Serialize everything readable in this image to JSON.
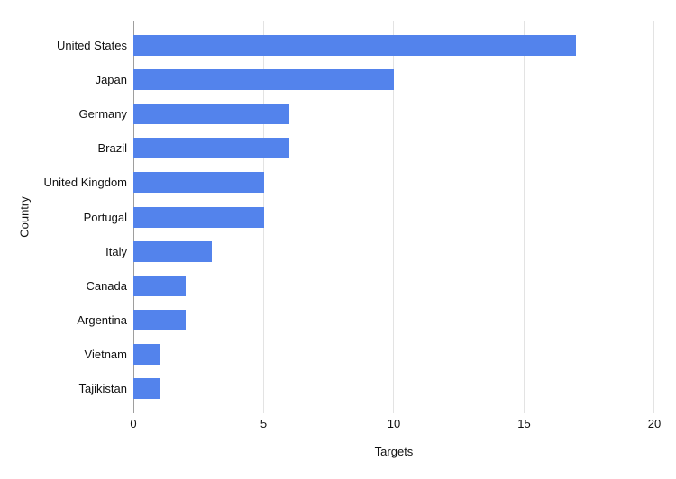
{
  "chart_data": {
    "type": "bar",
    "orientation": "horizontal",
    "title": "",
    "categories": [
      "United States",
      "Japan",
      "Germany",
      "Brazil",
      "United Kingdom",
      "Portugal",
      "Italy",
      "Canada",
      "Argentina",
      "Vietnam",
      "Tajikistan"
    ],
    "values": [
      17,
      10,
      6,
      6,
      5,
      5,
      3,
      2,
      2,
      1,
      1
    ],
    "xlabel": "Targets",
    "ylabel": "Country",
    "xlim": [
      0,
      20
    ],
    "xticks": [
      0,
      5,
      10,
      15,
      20
    ],
    "grid": true,
    "legend": "none",
    "colors": {
      "bar": "#5383ec",
      "axis_line": "#9e9e9e",
      "gridline": "#e3e3e3",
      "text": "#111111",
      "background": "#ffffff"
    }
  }
}
